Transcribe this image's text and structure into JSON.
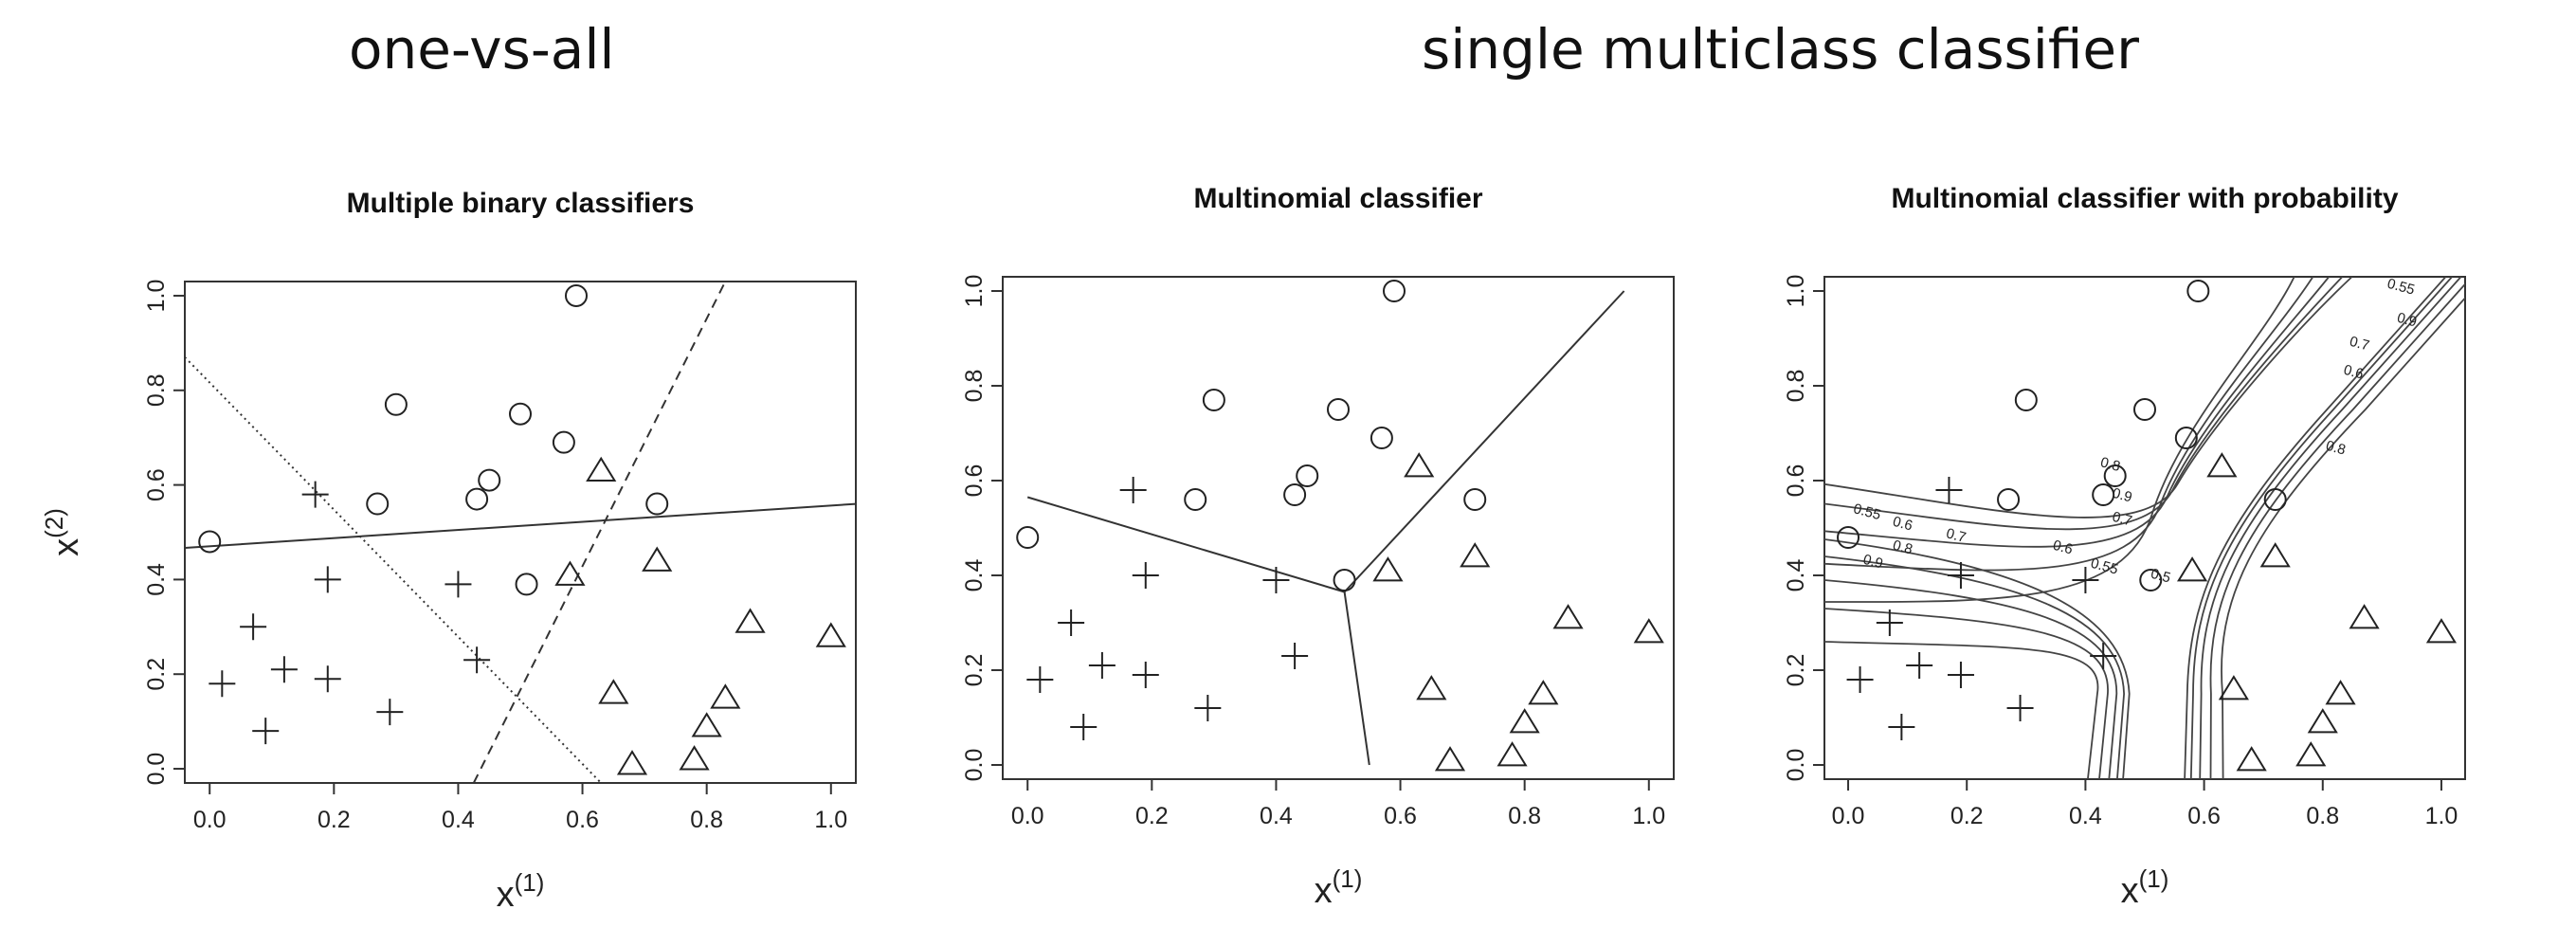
{
  "headings": {
    "left": "one-vs-all",
    "right": "single multiclass classifier"
  },
  "chart_data": [
    {
      "type": "scatter",
      "title": "Multiple binary classifiers",
      "xlabel": "x",
      "xlabel_sup": "(1)",
      "ylabel": "x",
      "ylabel_sup": "(2)",
      "xlim": [
        -0.04,
        1.04
      ],
      "ylim": [
        -0.03,
        1.03
      ],
      "xticks": [
        "0.0",
        "0.2",
        "0.4",
        "0.6",
        "0.8",
        "1.0"
      ],
      "yticks": [
        "0.0",
        "0.2",
        "0.4",
        "0.6",
        "0.8",
        "1.0"
      ],
      "boundaries": [
        {
          "style": "solid",
          "points": [
            [
              -0.04,
              0.467
            ],
            [
              1.04,
              0.56
            ]
          ]
        },
        {
          "style": "dashed",
          "points": [
            [
              0.425,
              -0.03
            ],
            [
              0.83,
              1.03
            ]
          ]
        },
        {
          "style": "dotted",
          "points": [
            [
              -0.04,
              0.87
            ],
            [
              0.63,
              -0.03
            ]
          ]
        }
      ]
    },
    {
      "type": "scatter",
      "title": "Multinomial classifier",
      "xlabel": "x",
      "xlabel_sup": "(1)",
      "xlim": [
        -0.04,
        1.04
      ],
      "ylim": [
        -0.03,
        1.03
      ],
      "xticks": [
        "0.0",
        "0.2",
        "0.4",
        "0.6",
        "0.8",
        "1.0"
      ],
      "yticks": [
        "0.0",
        "0.2",
        "0.4",
        "0.6",
        "0.8",
        "1.0"
      ],
      "boundaries": [
        {
          "style": "solid",
          "points": [
            [
              0.0,
              0.565
            ],
            [
              0.51,
              0.365
            ]
          ]
        },
        {
          "style": "solid",
          "points": [
            [
              0.51,
              0.365
            ],
            [
              0.96,
              1.0
            ]
          ]
        },
        {
          "style": "solid",
          "points": [
            [
              0.51,
              0.365
            ],
            [
              0.55,
              0.0
            ]
          ]
        }
      ]
    },
    {
      "type": "scatter",
      "title": "Multinomial classifier with probability",
      "xlabel": "x",
      "xlabel_sup": "(1)",
      "xlim": [
        -0.04,
        1.04
      ],
      "ylim": [
        -0.03,
        1.03
      ],
      "xticks": [
        "0.0",
        "0.2",
        "0.4",
        "0.6",
        "0.8",
        "1.0"
      ],
      "yticks": [
        "0.0",
        "0.2",
        "0.4",
        "0.6",
        "0.8",
        "1.0"
      ],
      "contour_levels": [
        "0.5",
        "0.55",
        "0.6",
        "0.7",
        "0.8",
        "0.9"
      ]
    }
  ],
  "points": {
    "circle": [
      [
        0.0,
        0.48
      ],
      [
        0.27,
        0.56
      ],
      [
        0.3,
        0.77
      ],
      [
        0.43,
        0.57
      ],
      [
        0.45,
        0.61
      ],
      [
        0.5,
        0.75
      ],
      [
        0.51,
        0.39
      ],
      [
        0.57,
        0.69
      ],
      [
        0.59,
        1.0
      ],
      [
        0.72,
        0.56
      ]
    ],
    "plus": [
      [
        0.02,
        0.18
      ],
      [
        0.07,
        0.3
      ],
      [
        0.09,
        0.08
      ],
      [
        0.12,
        0.21
      ],
      [
        0.17,
        0.58
      ],
      [
        0.19,
        0.19
      ],
      [
        0.19,
        0.4
      ],
      [
        0.29,
        0.12
      ],
      [
        0.4,
        0.39
      ],
      [
        0.43,
        0.23
      ]
    ],
    "triangle": [
      [
        0.58,
        0.41
      ],
      [
        0.63,
        0.63
      ],
      [
        0.65,
        0.16
      ],
      [
        0.68,
        0.01
      ],
      [
        0.72,
        0.44
      ],
      [
        0.78,
        0.02
      ],
      [
        0.8,
        0.09
      ],
      [
        0.83,
        0.15
      ],
      [
        0.87,
        0.31
      ],
      [
        1.0,
        0.28
      ]
    ]
  }
}
